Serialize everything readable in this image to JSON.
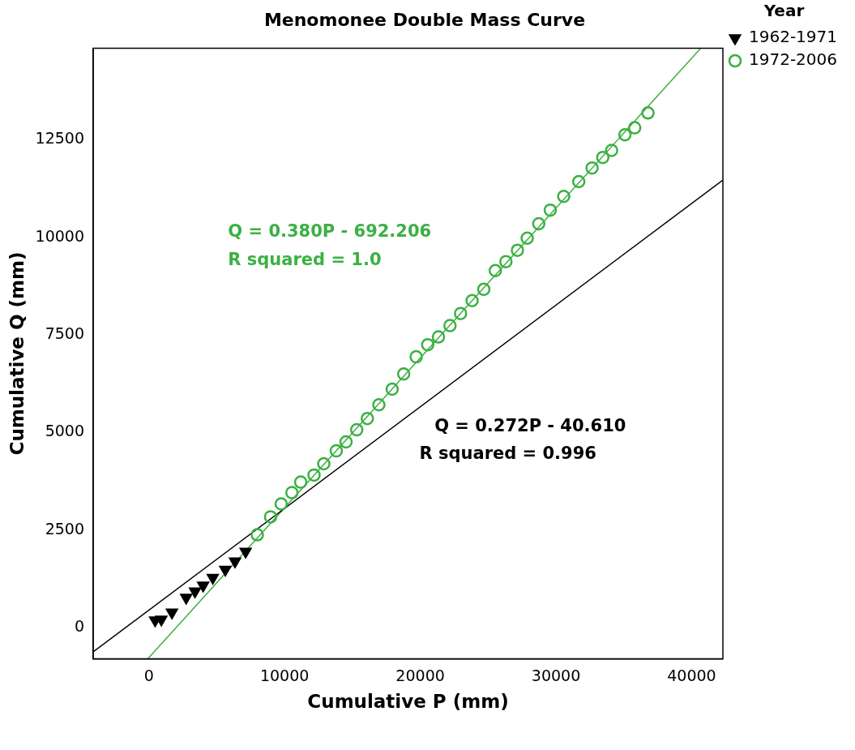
{
  "chart_data": {
    "type": "scatter",
    "title": "Menomonee Double Mass Curve",
    "xlabel": "Cumulative P (mm)",
    "ylabel": "Cumulative Q (mm)",
    "legend_title": "Year",
    "xlim": [
      -4100,
      42300
    ],
    "ylim": [
      -800,
      14850
    ],
    "xticks": [
      0,
      10000,
      20000,
      30000,
      40000
    ],
    "yticks": [
      0,
      2500,
      5000,
      7500,
      10000,
      12500
    ],
    "grid": false,
    "legend": "top right",
    "series": [
      {
        "name": "1962-1971",
        "color": "#000000",
        "marker": "triangle-down",
        "x": [
          460,
          920,
          1700,
          2750,
          3400,
          4000,
          4710,
          5630,
          6350,
          7130
        ],
        "values": [
          190,
          210,
          390,
          770,
          930,
          1080,
          1280,
          1490,
          1700,
          1950
        ]
      },
      {
        "name": "1972-2006",
        "color": "#3cb043",
        "marker": "circle",
        "x": [
          7990,
          8970,
          9750,
          10540,
          11190,
          12170,
          12890,
          13810,
          14530,
          15320,
          16100,
          16950,
          17930,
          18780,
          19700,
          20550,
          21340,
          22190,
          22970,
          23820,
          24680,
          25530,
          26310,
          27160,
          27880,
          28730,
          29580,
          30570,
          31680,
          32660,
          33450,
          34100,
          35080,
          35800,
          36780
        ],
        "values": [
          2380,
          2840,
          3170,
          3460,
          3730,
          3910,
          4200,
          4530,
          4760,
          5070,
          5360,
          5710,
          6110,
          6500,
          6940,
          7250,
          7450,
          7740,
          8050,
          8380,
          8670,
          9150,
          9380,
          9670,
          9980,
          10350,
          10700,
          11050,
          11430,
          11780,
          12050,
          12230,
          12630,
          12810,
          13190
        ]
      },
      {
        "type": "line",
        "color": "#000000",
        "marker": "none",
        "x": [
          -4100,
          42300
        ],
        "values": [
          -620,
          11470
        ]
      },
      {
        "type": "line",
        "color": "#3cb043",
        "marker": "none",
        "x": [
          -50,
          40640
        ],
        "values": [
          -790,
          14840
        ]
      }
    ],
    "annotations": [
      "Q = 0.380P - 692.206",
      "R squared = 1.0",
      "Q = 0.272P - 40.610",
      "R squared = 0.996"
    ]
  }
}
